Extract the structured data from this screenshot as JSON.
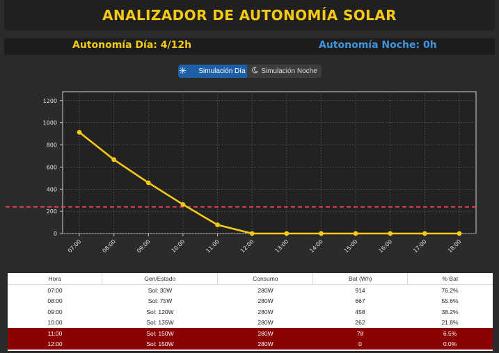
{
  "app": {
    "title": "ANALIZADOR DE AUTONOMÍA SOLAR"
  },
  "status": {
    "day_label": "Autonomía Día: 4/12h",
    "night_label": "Autonomía Noche: 0h"
  },
  "mode_toggle": {
    "day_label": "Simulación Día",
    "day_icon": "sun-icon",
    "night_label": "Simulación Noche",
    "night_icon": "moon-icon",
    "selected": "day"
  },
  "colors": {
    "accent_yellow": "#f6c915",
    "accent_blue": "#3d95e0",
    "alert_row": "#8b0000",
    "threshold_line": "#e84a4a"
  },
  "chart_data": {
    "type": "line",
    "categories": [
      "07:00",
      "08:00",
      "09:00",
      "10:00",
      "11:00",
      "12:00",
      "13:00",
      "14:00",
      "15:00",
      "16:00",
      "17:00",
      "18:00"
    ],
    "series": [
      {
        "values": [
          914,
          667,
          458,
          262,
          78,
          0,
          0,
          0,
          0,
          0,
          0,
          0
        ],
        "color": "#f6c915"
      }
    ],
    "threshold": {
      "value": 240,
      "color": "#e84a4a",
      "style": "dashed"
    },
    "yticks": [
      0,
      200,
      400,
      600,
      800,
      1000,
      1200
    ],
    "ylim": [
      0,
      1280
    ],
    "grid": true,
    "title": "",
    "xlabel": "",
    "ylabel": ""
  },
  "table": {
    "headers": [
      "Hora",
      "Gen/Estado",
      "Consumo",
      "Bat (Wh)",
      "% Bat"
    ],
    "rows": [
      {
        "hora": "07:00",
        "gen": "Sol: 30W",
        "consumo": "280W",
        "bat": "914",
        "pct": "76.2%",
        "alert": false
      },
      {
        "hora": "08:00",
        "gen": "Sol: 75W",
        "consumo": "280W",
        "bat": "667",
        "pct": "55.6%",
        "alert": false
      },
      {
        "hora": "09:00",
        "gen": "Sol: 120W",
        "consumo": "280W",
        "bat": "458",
        "pct": "38.2%",
        "alert": false
      },
      {
        "hora": "10:00",
        "gen": "Sol: 135W",
        "consumo": "280W",
        "bat": "262",
        "pct": "21.8%",
        "alert": false
      },
      {
        "hora": "11:00",
        "gen": "Sol: 150W",
        "consumo": "280W",
        "bat": "78",
        "pct": "6.5%",
        "alert": true
      },
      {
        "hora": "12:00",
        "gen": "Sol: 150W",
        "consumo": "280W",
        "bat": "0",
        "pct": "0.0%",
        "alert": true
      }
    ]
  }
}
